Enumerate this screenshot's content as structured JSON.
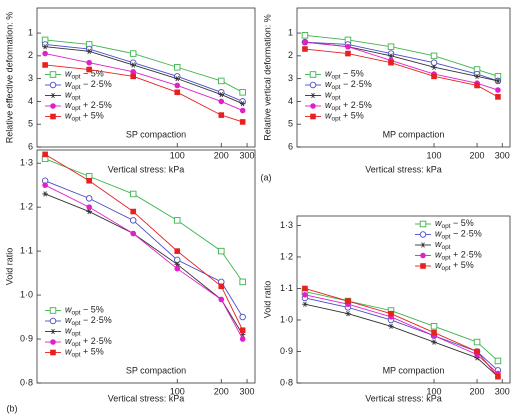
{
  "figure_labels": [
    "(a)",
    "(b)"
  ],
  "chart_data": [
    {
      "type": "line",
      "annotation": "SP compaction",
      "xlabel": "Vertical stress: kPa",
      "ylabel": "Relative effective deformation: %",
      "xlog": true,
      "xlim": [
        11,
        340
      ],
      "xticks": [
        100,
        200,
        300
      ],
      "ylim": [
        -0.1,
        6
      ],
      "yticks": [
        1,
        2,
        3,
        4,
        5,
        6
      ],
      "y_inverted": true,
      "legend": "lower left",
      "x": [
        12.5,
        25,
        50,
        100,
        200,
        280
      ],
      "series": [
        {
          "name": "wopt − 5%",
          "color": "#3cb44b",
          "marker": "open-square",
          "values": [
            1.3,
            1.5,
            1.9,
            2.5,
            3.1,
            3.6
          ]
        },
        {
          "name": "wopt − 2·5%",
          "color": "#4a4ac8",
          "marker": "open-circle",
          "values": [
            1.5,
            1.7,
            2.3,
            2.9,
            3.6,
            4.0
          ]
        },
        {
          "name": "wopt",
          "color": "#333333",
          "marker": "star",
          "values": [
            1.6,
            1.8,
            2.4,
            3.0,
            3.7,
            4.1
          ]
        },
        {
          "name": "wopt + 2·5%",
          "color": "#e020c8",
          "marker": "filled-circle",
          "values": [
            1.9,
            2.3,
            2.7,
            3.3,
            4.0,
            4.4
          ]
        },
        {
          "name": "wopt + 5%",
          "color": "#e82020",
          "marker": "filled-square",
          "values": [
            2.4,
            2.6,
            2.9,
            3.6,
            4.6,
            4.9
          ]
        }
      ]
    },
    {
      "type": "line",
      "annotation": "MP compaction",
      "xlabel": "Vertical stress: kPa",
      "ylabel": "Relative vertical deformation: %",
      "xlog": true,
      "xlim": [
        11,
        340
      ],
      "xticks": [
        100,
        200,
        300
      ],
      "ylim": [
        -0.1,
        6
      ],
      "yticks": [
        1,
        2,
        3,
        4,
        5,
        6
      ],
      "y_inverted": true,
      "legend": "lower left",
      "x": [
        12.5,
        25,
        50,
        100,
        200,
        280
      ],
      "series": [
        {
          "name": "wopt − 5%",
          "color": "#3cb44b",
          "marker": "open-square",
          "values": [
            1.1,
            1.3,
            1.6,
            2.0,
            2.6,
            2.9
          ]
        },
        {
          "name": "wopt − 2·5%",
          "color": "#4a4ac8",
          "marker": "open-circle",
          "values": [
            1.4,
            1.5,
            1.9,
            2.3,
            2.8,
            3.1
          ]
        },
        {
          "name": "wopt",
          "color": "#333333",
          "marker": "star",
          "values": [
            1.4,
            1.6,
            2.0,
            2.5,
            2.9,
            3.1
          ]
        },
        {
          "name": "wopt + 2·5%",
          "color": "#e020c8",
          "marker": "filled-circle",
          "values": [
            1.4,
            1.6,
            2.2,
            2.8,
            3.2,
            3.5
          ]
        },
        {
          "name": "wopt + 5%",
          "color": "#e82020",
          "marker": "filled-square",
          "values": [
            1.7,
            1.9,
            2.3,
            2.9,
            3.3,
            3.8
          ]
        }
      ]
    },
    {
      "type": "line",
      "annotation": "SP compaction",
      "xlabel": "Vertical stress: kPa",
      "ylabel": "Void ratio",
      "xlog": true,
      "xlim": [
        11,
        340
      ],
      "xticks": [
        100,
        200,
        300
      ],
      "ylim": [
        0.8,
        1.33
      ],
      "yticks": [
        {
          "value": 0.8,
          "label": "0·8"
        },
        {
          "value": 0.9,
          "label": "0·9"
        },
        {
          "value": 1.0,
          "label": "1·0"
        },
        {
          "value": 1.1,
          "label": "1·1"
        },
        {
          "value": 1.2,
          "label": "1·2"
        },
        {
          "value": 1.3,
          "label": "1·3"
        }
      ],
      "legend": "lower left",
      "x": [
        12.5,
        25,
        50,
        100,
        200,
        280
      ],
      "series": [
        {
          "name": "wopt − 5%",
          "color": "#3cb44b",
          "marker": "open-square",
          "values": [
            1.31,
            1.27,
            1.23,
            1.17,
            1.1,
            1.03
          ]
        },
        {
          "name": "wopt − 2·5%",
          "color": "#4a4ac8",
          "marker": "open-circle",
          "values": [
            1.26,
            1.22,
            1.17,
            1.08,
            1.03,
            0.95
          ]
        },
        {
          "name": "wopt",
          "color": "#333333",
          "marker": "star",
          "values": [
            1.23,
            1.19,
            1.14,
            1.07,
            0.99,
            0.91
          ]
        },
        {
          "name": "wopt + 2·5%",
          "color": "#e020c8",
          "marker": "filled-circle",
          "values": [
            1.25,
            1.2,
            1.14,
            1.06,
            0.99,
            0.9
          ]
        },
        {
          "name": "wopt + 5%",
          "color": "#e82020",
          "marker": "filled-square",
          "values": [
            1.32,
            1.26,
            1.19,
            1.1,
            1.02,
            0.92
          ]
        }
      ]
    },
    {
      "type": "line",
      "annotation": "MP compaction",
      "xlabel": "Vertical stress: kPa",
      "ylabel": "Void ratio",
      "xlog": true,
      "xlim": [
        11,
        340
      ],
      "xticks": [
        100,
        200,
        300
      ],
      "ylim": [
        0.8,
        1.33
      ],
      "yticks": [
        {
          "value": 0.8,
          "label": "0·8"
        },
        {
          "value": 0.9,
          "label": "0·9"
        },
        {
          "value": 1.0,
          "label": "1·0"
        },
        {
          "value": 1.1,
          "label": "1·1"
        },
        {
          "value": 1.2,
          "label": "1·2"
        },
        {
          "value": 1.3,
          "label": "1·3"
        }
      ],
      "legend": "upper right",
      "x": [
        12.5,
        25,
        50,
        100,
        200,
        280
      ],
      "series": [
        {
          "name": "wopt − 5%",
          "color": "#3cb44b",
          "marker": "open-square",
          "values": [
            1.09,
            1.06,
            1.03,
            0.98,
            0.93,
            0.87
          ]
        },
        {
          "name": "wopt − 2·5%",
          "color": "#4a4ac8",
          "marker": "open-circle",
          "values": [
            1.07,
            1.04,
            1.0,
            0.95,
            0.9,
            0.84
          ]
        },
        {
          "name": "wopt",
          "color": "#333333",
          "marker": "star",
          "values": [
            1.05,
            1.02,
            0.98,
            0.93,
            0.88,
            0.82
          ]
        },
        {
          "name": "wopt + 2·5%",
          "color": "#e020c8",
          "marker": "filled-circle",
          "values": [
            1.08,
            1.05,
            1.01,
            0.95,
            0.89,
            0.83
          ]
        },
        {
          "name": "wopt + 5%",
          "color": "#e82020",
          "marker": "filled-square",
          "values": [
            1.1,
            1.06,
            1.02,
            0.96,
            0.9,
            0.82
          ]
        }
      ]
    }
  ]
}
